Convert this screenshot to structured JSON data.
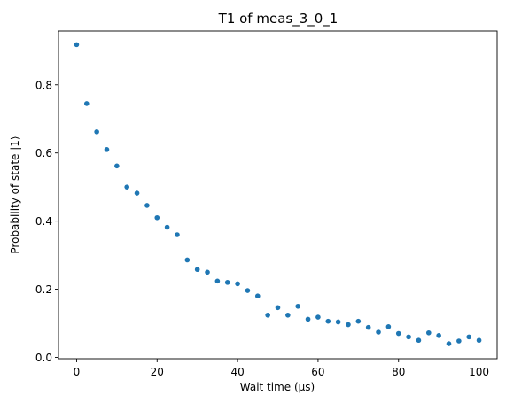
{
  "chart_data": {
    "type": "scatter",
    "title": "T1 of meas_3_0_1",
    "xlabel": "Wait time (µs)",
    "ylabel": "Probability of state |1⟩",
    "xlim": [
      -4.5,
      104.5
    ],
    "ylim": [
      -0.004,
      0.958
    ],
    "xticks": [
      0,
      20,
      40,
      60,
      80,
      100
    ],
    "xtick_labels": [
      "0",
      "20",
      "40",
      "60",
      "80",
      "100"
    ],
    "yticks": [
      0.0,
      0.2,
      0.4,
      0.6,
      0.8
    ],
    "ytick_labels": [
      "0.0",
      "0.2",
      "0.4",
      "0.6",
      "0.8"
    ],
    "grid": false,
    "marker_color": "#1f77b4",
    "series": [
      {
        "x": [
          0,
          2.5,
          5,
          7.5,
          10,
          12.5,
          15,
          17.5,
          20,
          22.5,
          25,
          27.5,
          30,
          32.5,
          35,
          37.5,
          40,
          42.5,
          45,
          47.5,
          50,
          52.5,
          55,
          57.5,
          60,
          62.5,
          65,
          67.5,
          70,
          72.5,
          75,
          77.5,
          80,
          82.5,
          85,
          87.5,
          90,
          92.5,
          95,
          97.5,
          100
        ],
        "y": [
          0.918,
          0.745,
          0.662,
          0.61,
          0.562,
          0.5,
          0.482,
          0.446,
          0.41,
          0.382,
          0.36,
          0.286,
          0.258,
          0.25,
          0.224,
          0.22,
          0.216,
          0.196,
          0.18,
          0.124,
          0.146,
          0.124,
          0.15,
          0.112,
          0.118,
          0.106,
          0.104,
          0.096,
          0.106,
          0.088,
          0.074,
          0.09,
          0.07,
          0.06,
          0.05,
          0.072,
          0.064,
          0.04,
          0.048,
          0.06,
          0.05
        ]
      }
    ]
  }
}
